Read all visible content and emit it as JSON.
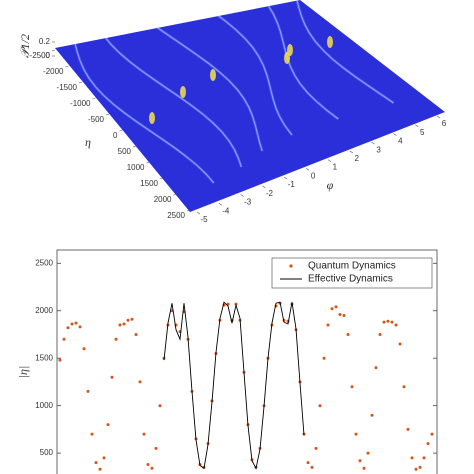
{
  "chart_data": [
    {
      "type": "surface",
      "xlabel": "φ",
      "ylabel": "η",
      "zlabel": "𝒫1/2",
      "xlim": [
        -5,
        6
      ],
      "xticks": [
        -5,
        -4,
        -3,
        -2,
        -1,
        0,
        1,
        2,
        3,
        4,
        5,
        6
      ],
      "ylim": [
        -2500,
        2500
      ],
      "yticks": [
        -2500,
        -2000,
        -1500,
        -1000,
        -500,
        0,
        500,
        1000,
        1500,
        2000,
        2500
      ],
      "zlim": [
        0,
        0.2
      ],
      "zticks": [
        0,
        0.2
      ],
      "color": "#2b2fd9"
    },
    {
      "type": "line",
      "ylabel": "|η|",
      "ylim": [
        280,
        2640
      ],
      "yticks": [
        500,
        1000,
        1500,
        2000,
        2500
      ],
      "legend": "top-right",
      "series": [
        {
          "name": "Quantum Dynamics",
          "color": "#d95319",
          "mode": "markers",
          "values": [
            1480,
            1700,
            1820,
            1860,
            1870,
            1830,
            1600,
            1150,
            700,
            400,
            330,
            450,
            800,
            1300,
            1700,
            1850,
            1860,
            1900,
            1910,
            1750,
            1250,
            700,
            380,
            340,
            550,
            1000,
            1500,
            1850,
            2000,
            1850,
            1780,
            1990,
            1700,
            1150,
            650,
            380,
            350,
            600,
            1050,
            1550,
            1900,
            2060,
            2070,
            1900,
            2070,
            1900,
            1350,
            800,
            430,
            350,
            550,
            1000,
            1500,
            1850,
            2050,
            2080,
            1900,
            1890,
            2070,
            1800,
            1250,
            700,
            400,
            350,
            550,
            1000,
            1500,
            1850,
            2020,
            2040,
            1960,
            1950,
            1750,
            1200,
            700,
            420,
            340,
            500,
            900,
            1400,
            1750,
            1880,
            1890,
            1880,
            1850,
            1650,
            1200,
            750,
            450,
            330,
            350,
            450,
            600,
            700
          ]
        },
        {
          "name": "Effective Dynamics",
          "color": "#000000",
          "mode": "lines",
          "values": [
            null,
            null,
            null,
            null,
            null,
            null,
            null,
            null,
            null,
            null,
            null,
            null,
            null,
            null,
            null,
            null,
            null,
            null,
            null,
            null,
            null,
            null,
            null,
            null,
            null,
            null,
            1480,
            1870,
            2080,
            1800,
            1700,
            2080,
            1720,
            1150,
            640,
            370,
            340,
            590,
            1040,
            1560,
            1920,
            2090,
            2050,
            1870,
            2060,
            1920,
            1350,
            790,
            420,
            340,
            540,
            990,
            1500,
            1870,
            2080,
            2090,
            1880,
            1860,
            2090,
            1810,
            1240,
            690,
            null,
            null,
            null,
            null,
            null,
            null,
            null,
            null,
            null,
            null,
            null,
            null,
            null,
            null,
            null,
            null,
            null,
            null,
            null,
            null,
            null,
            null,
            null,
            null,
            null,
            null,
            null,
            null,
            null,
            null
          ]
        }
      ]
    }
  ]
}
